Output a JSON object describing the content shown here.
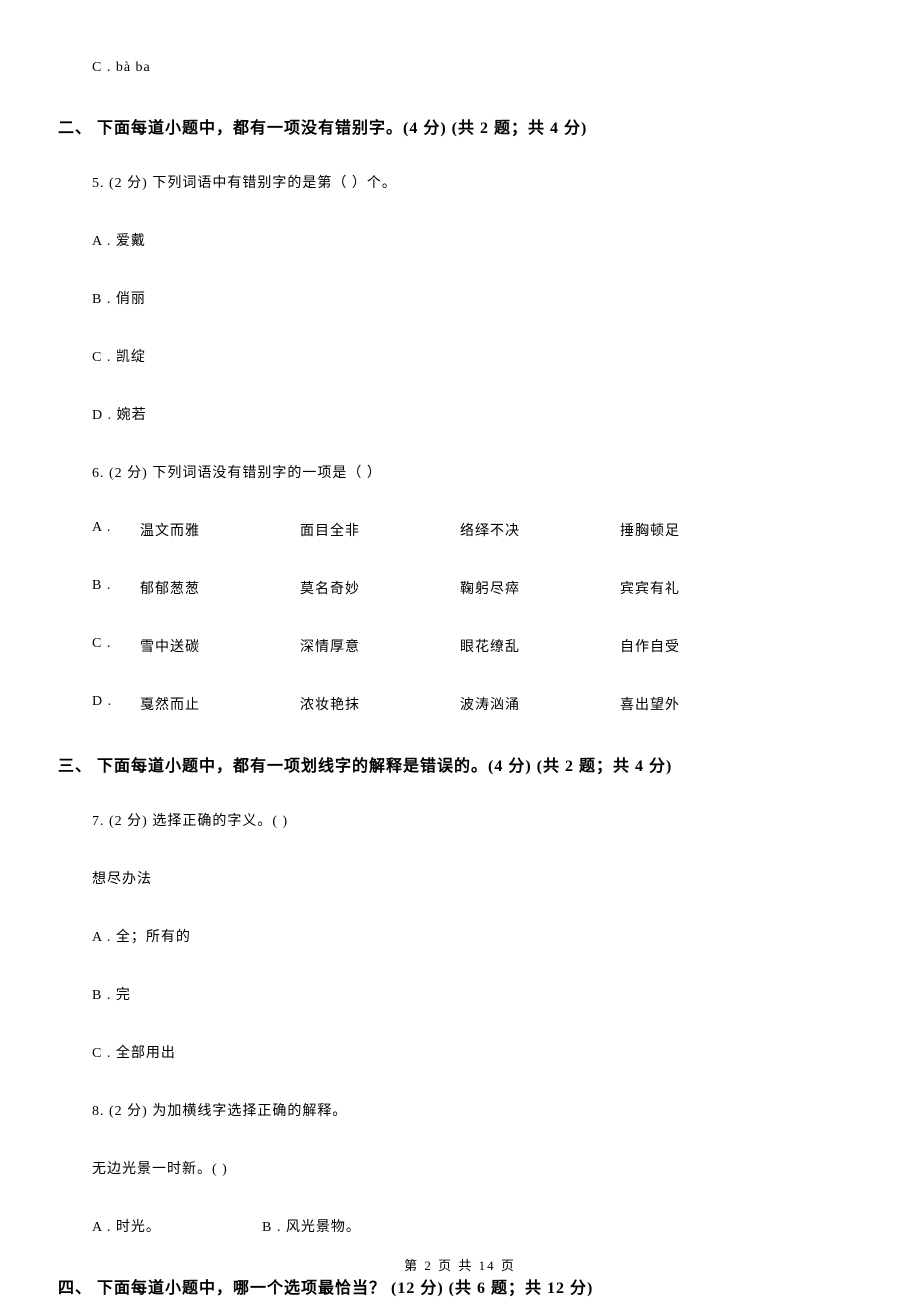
{
  "opt_c_top": "C . bà     ba",
  "section2": {
    "header": "二、 下面每道小题中，都有一项没有错别字。(4 分)  (共 2 题；共 4 分)",
    "q5": {
      "stem": "5.  (2 分)  下列词语中有错别字的是第（    ）个。",
      "a": "A . 爱戴",
      "b": "B . 俏丽",
      "c": "C . 凯绽",
      "d": "D . 婉若"
    },
    "q6": {
      "stem": "6.  (2 分)  下列词语没有错别字的一项是（    ）",
      "a": {
        "label": "A .",
        "w1": "温文而雅",
        "w2": "面目全非",
        "w3": "络绎不决",
        "w4": "捶胸顿足"
      },
      "b": {
        "label": "B .",
        "w1": "郁郁葱葱",
        "w2": "莫名奇妙",
        "w3": "鞠躬尽瘁",
        "w4": "宾宾有礼"
      },
      "c": {
        "label": "C .",
        "w1": "雪中送碳",
        "w2": "深情厚意",
        "w3": "眼花缭乱",
        "w4": "自作自受"
      },
      "d": {
        "label": "D .",
        "w1": "戛然而止",
        "w2": "浓妆艳抹",
        "w3": "波涛汹涌",
        "w4": "喜出望外"
      }
    }
  },
  "section3": {
    "header": "三、 下面每道小题中，都有一项划线字的解释是错误的。(4 分)  (共 2 题；共 4 分)",
    "q7": {
      "stem": "7.  (2 分)  选择正确的字义。(      )",
      "phrase": "想尽办法",
      "a": "A . 全；所有的",
      "b": "B . 完",
      "c": "C . 全部用出"
    },
    "q8": {
      "stem": "8.  (2 分)  为加横线字选择正确的解释。",
      "phrase": "无边光景一时新。(      )",
      "a": "A . 时光。",
      "b": "B . 风光景物。"
    }
  },
  "section4": {
    "header": "四、 下面每道小题中，哪一个选项最恰当？ (12 分)  (共 6 题；共 12 分)"
  },
  "footer": "第 2 页 共 14 页"
}
